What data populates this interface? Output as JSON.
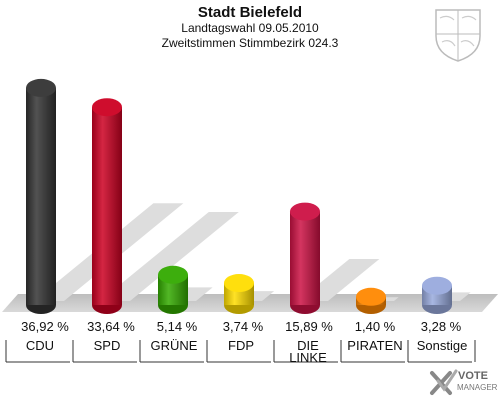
{
  "header": {
    "title": "Stadt Bielefeld",
    "subtitle1": "Landtagswahl 09.05.2010",
    "subtitle2": "Zweitstimmen Stimmbezirk 024.3"
  },
  "logo": {
    "line1": "VOTE",
    "line2": "MANAGER",
    "icon": "cross-check-icon"
  },
  "crest": {
    "icon": "nrw-coat-of-arms-icon"
  },
  "chart_data": {
    "type": "bar",
    "categories": [
      "CDU",
      "SPD",
      "GRÜNE",
      "FDP",
      "DIE LINKE",
      "PIRATEN",
      "Sonstige"
    ],
    "label_lines": [
      [
        "CDU"
      ],
      [
        "SPD"
      ],
      [
        "GRÜNE"
      ],
      [
        "FDP"
      ],
      [
        "DIE",
        "LINKE"
      ],
      [
        "PIRATEN"
      ],
      [
        "Sonstige"
      ]
    ],
    "values": [
      36.92,
      33.64,
      5.14,
      3.74,
      15.89,
      1.4,
      3.28
    ],
    "value_labels": [
      "36,92 %",
      "33,64 %",
      "5,14 %",
      "3,74 %",
      "15,89 %",
      "1,40 %",
      "3,28 %"
    ],
    "colors": [
      "#333333",
      "#cc0022",
      "#33aa00",
      "#ffdd00",
      "#cc1144",
      "#ff8800",
      "#99aadd"
    ],
    "ylim": [
      0,
      40
    ],
    "grid": false,
    "legend": "none"
  }
}
